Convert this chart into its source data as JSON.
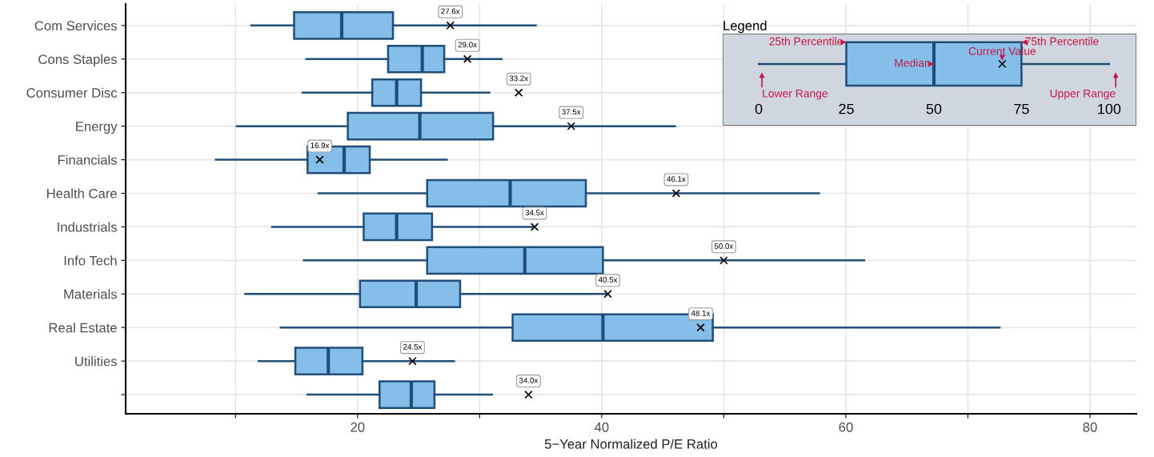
{
  "chart_data": [
    {
      "type": "box",
      "orientation": "horizontal",
      "xlabel": "5−Year Normalized P/E Ratio",
      "categories": [
        "Com Services",
        "Cons Staples",
        "Consumer Disc",
        "Energy",
        "Financials",
        "Health Care",
        "Industrials",
        "Info Tech",
        "Materials",
        "Real Estate",
        "Utilities",
        null
      ],
      "series": [
        {
          "color": "#85bfe9",
          "boxes": [
            {
              "low": 11.3,
              "q1": 14.8,
              "median": 18.7,
              "q3": 22.9,
              "high": 34.6
            },
            {
              "low": 15.8,
              "q1": 22.5,
              "median": 25.3,
              "q3": 27.1,
              "high": 31.8
            },
            {
              "low": 15.5,
              "q1": 21.2,
              "median": 23.2,
              "q3": 25.2,
              "high": 30.8
            },
            {
              "low": 10.1,
              "q1": 19.2,
              "median": 25.1,
              "q3": 31.1,
              "high": 46.0
            },
            {
              "low": 8.4,
              "q1": 15.9,
              "median": 18.9,
              "q3": 21.0,
              "high": 27.3
            },
            {
              "low": 16.8,
              "q1": 25.7,
              "median": 32.5,
              "q3": 38.7,
              "high": 57.8
            },
            {
              "low": 13.0,
              "q1": 20.5,
              "median": 23.2,
              "q3": 26.1,
              "high": 34.4
            },
            {
              "low": 15.6,
              "q1": 25.7,
              "median": 33.7,
              "q3": 40.1,
              "high": 61.5
            },
            {
              "low": 10.8,
              "q1": 20.2,
              "median": 24.8,
              "q3": 28.4,
              "high": 40.4
            },
            {
              "low": 13.7,
              "q1": 32.7,
              "median": 40.1,
              "q3": 49.1,
              "high": 72.6
            },
            {
              "low": 11.9,
              "q1": 14.9,
              "median": 17.6,
              "q3": 20.4,
              "high": 27.9
            },
            {
              "low": 15.9,
              "q1": 21.8,
              "median": 24.4,
              "q3": 26.3,
              "high": 31.0
            }
          ]
        },
        {
          "type": "scatter",
          "color": "#000000",
          "marker": "cross",
          "values": [
            27.6,
            29.0,
            33.2,
            37.5,
            16.9,
            46.1,
            34.5,
            50.0,
            40.5,
            48.1,
            24.5,
            34.0
          ],
          "value_labels": [
            "27.6x",
            "29.0x",
            "33.2x",
            "37.5x",
            "16.9x",
            "46.1x",
            "34.5x",
            "50.0x",
            "40.5x",
            "48.1x",
            "24.5x",
            "34.0x"
          ]
        }
      ],
      "xlim": [
        1,
        83.8
      ],
      "xticks": [
        {
          "value": 10,
          "label": null
        },
        20,
        {
          "value": 30,
          "label": null
        },
        40,
        {
          "value": 50,
          "label": null
        },
        60,
        {
          "value": 70,
          "label": null
        },
        80
      ],
      "grid": true
    },
    {
      "type": "box",
      "orientation": "horizontal",
      "title": "Legend",
      "categories": [
        null
      ],
      "series": [
        {
          "color": "#85bfe9",
          "boxes": [
            {
              "low": 0,
              "q1": 25,
              "median": 50,
              "q3": 75,
              "high": 100
            }
          ]
        },
        {
          "type": "scatter",
          "color": "#000000",
          "marker": "cross",
          "values": [
            69.5
          ]
        }
      ],
      "xlim": [
        -10.3,
        107.8
      ],
      "xticks": [
        0,
        25,
        50,
        75,
        100
      ],
      "tick_labels": "x",
      "annotations": [
        {
          "text": "25th Percentile",
          "x": 25
        },
        {
          "text": "75th Percentile",
          "x": 75
        },
        {
          "text": "Median",
          "x": 50
        },
        {
          "text": "Current Value",
          "x": 69.5
        },
        "Lower Range",
        "Upper Range"
      ]
    }
  ]
}
